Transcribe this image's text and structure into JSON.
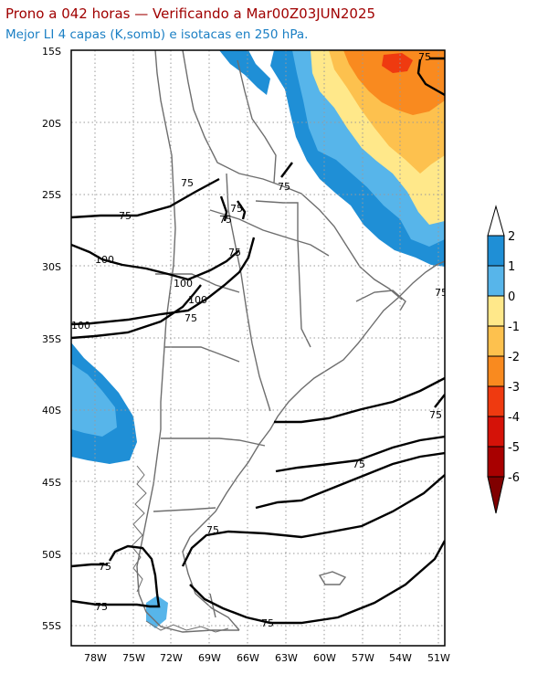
{
  "header": {
    "title": "Prono a 042 horas — Verificando a Mar00Z03JUN2025",
    "subtitle": "Mejor LI 4 capas (K,somb) e isotacas en 250 hPa."
  },
  "map": {
    "lat_labels": [
      "15S",
      "20S",
      "25S",
      "30S",
      "35S",
      "40S",
      "45S",
      "50S",
      "55S"
    ],
    "lon_labels": [
      "78W",
      "75W",
      "72W",
      "69W",
      "66W",
      "63W",
      "60W",
      "57W",
      "54W",
      "51W"
    ],
    "isotach_labels": [
      "75",
      "75",
      "75",
      "75",
      "75",
      "75",
      "100",
      "100",
      "100",
      "100",
      "75",
      "75",
      "75",
      "75",
      "75",
      "75",
      "75",
      "75",
      "75"
    ]
  },
  "colorbar": {
    "labels": [
      "2",
      "1",
      "0",
      "-1",
      "-2",
      "-3",
      "-4",
      "-5",
      "-6"
    ],
    "colors": [
      "#ffffff",
      "#1f8fd6",
      "#57b5ea",
      "#ffe88a",
      "#fdc14e",
      "#f98a1f",
      "#ef3a10",
      "#d51208",
      "#a80000",
      "#800000"
    ]
  }
}
